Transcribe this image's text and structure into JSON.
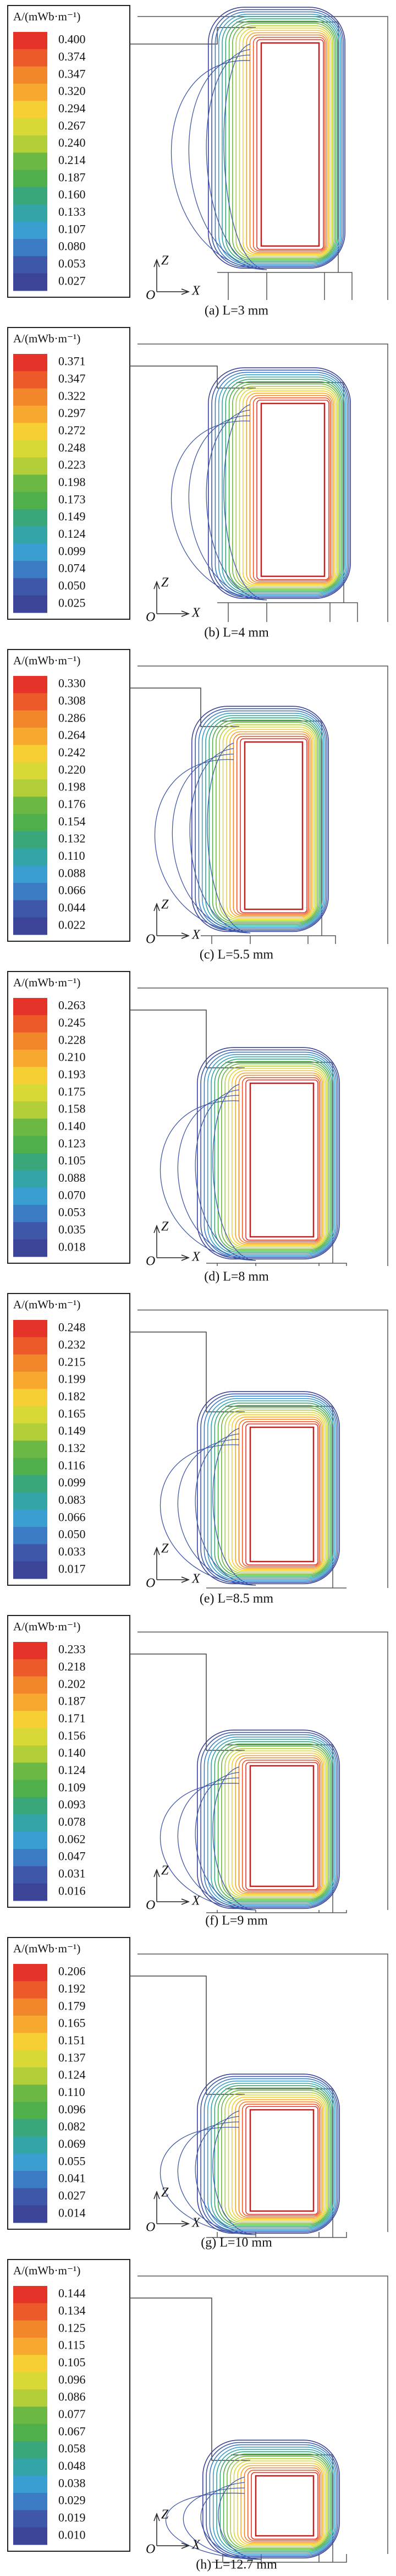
{
  "panels": [
    {
      "legend_title": "A/(mWb·m⁻¹)",
      "levels": [
        "0.400",
        "0.374",
        "0.347",
        "0.320",
        "0.294",
        "0.267",
        "0.240",
        "0.214",
        "0.187",
        "0.160",
        "0.133",
        "0.107",
        "0.080",
        "0.053",
        "0.027"
      ],
      "axis_z": "Z",
      "axis_x": "X",
      "origin": "O",
      "caption": "(a) L=3 mm"
    },
    {
      "legend_title": "A/(mWb·m⁻¹)",
      "levels": [
        "0.371",
        "0.347",
        "0.322",
        "0.297",
        "0.272",
        "0.248",
        "0.223",
        "0.198",
        "0.173",
        "0.149",
        "0.124",
        "0.099",
        "0.074",
        "0.050",
        "0.025"
      ],
      "axis_z": "Z",
      "axis_x": "X",
      "origin": "O",
      "caption": "(b) L=4 mm"
    },
    {
      "legend_title": "A/(mWb·m⁻¹)",
      "levels": [
        "0.330",
        "0.308",
        "0.286",
        "0.264",
        "0.242",
        "0.220",
        "0.198",
        "0.176",
        "0.154",
        "0.132",
        "0.110",
        "0.088",
        "0.066",
        "0.044",
        "0.022"
      ],
      "axis_z": "Z",
      "axis_x": "X",
      "origin": "O",
      "caption": "(c) L=5.5 mm"
    },
    {
      "legend_title": "A/(mWb·m⁻¹)",
      "levels": [
        "0.263",
        "0.245",
        "0.228",
        "0.210",
        "0.193",
        "0.175",
        "0.158",
        "0.140",
        "0.123",
        "0.105",
        "0.088",
        "0.070",
        "0.053",
        "0.035",
        "0.018"
      ],
      "axis_z": "Z",
      "axis_x": "X",
      "origin": "O",
      "caption": "(d) L=8 mm"
    },
    {
      "legend_title": "A/(mWb·m⁻¹)",
      "levels": [
        "0.248",
        "0.232",
        "0.215",
        "0.199",
        "0.182",
        "0.165",
        "0.149",
        "0.132",
        "0.116",
        "0.099",
        "0.083",
        "0.066",
        "0.050",
        "0.033",
        "0.017"
      ],
      "axis_z": "Z",
      "axis_x": "X",
      "origin": "O",
      "caption": "(e) L=8.5 mm"
    },
    {
      "legend_title": "A/(mWb·m⁻¹)",
      "levels": [
        "0.233",
        "0.218",
        "0.202",
        "0.187",
        "0.171",
        "0.156",
        "0.140",
        "0.124",
        "0.109",
        "0.093",
        "0.078",
        "0.062",
        "0.047",
        "0.031",
        "0.016"
      ],
      "axis_z": "Z",
      "axis_x": "X",
      "origin": "O",
      "caption": "(f) L=9 mm"
    },
    {
      "legend_title": "A/(mWb·m⁻¹)",
      "levels": [
        "0.206",
        "0.192",
        "0.179",
        "0.165",
        "0.151",
        "0.137",
        "0.124",
        "0.110",
        "0.096",
        "0.082",
        "0.069",
        "0.055",
        "0.041",
        "0.027",
        "0.014"
      ],
      "axis_z": "Z",
      "axis_x": "X",
      "origin": "O",
      "caption": "(g) L=10 mm"
    },
    {
      "legend_title": "A/(mWb·m⁻¹)",
      "levels": [
        "0.144",
        "0.134",
        "0.125",
        "0.115",
        "0.105",
        "0.096",
        "0.086",
        "0.077",
        "0.067",
        "0.058",
        "0.048",
        "0.038",
        "0.029",
        "0.019",
        "0.010"
      ],
      "axis_z": "Z",
      "axis_x": "X",
      "origin": "O",
      "caption": "(h) L=12.7 mm"
    }
  ]
}
